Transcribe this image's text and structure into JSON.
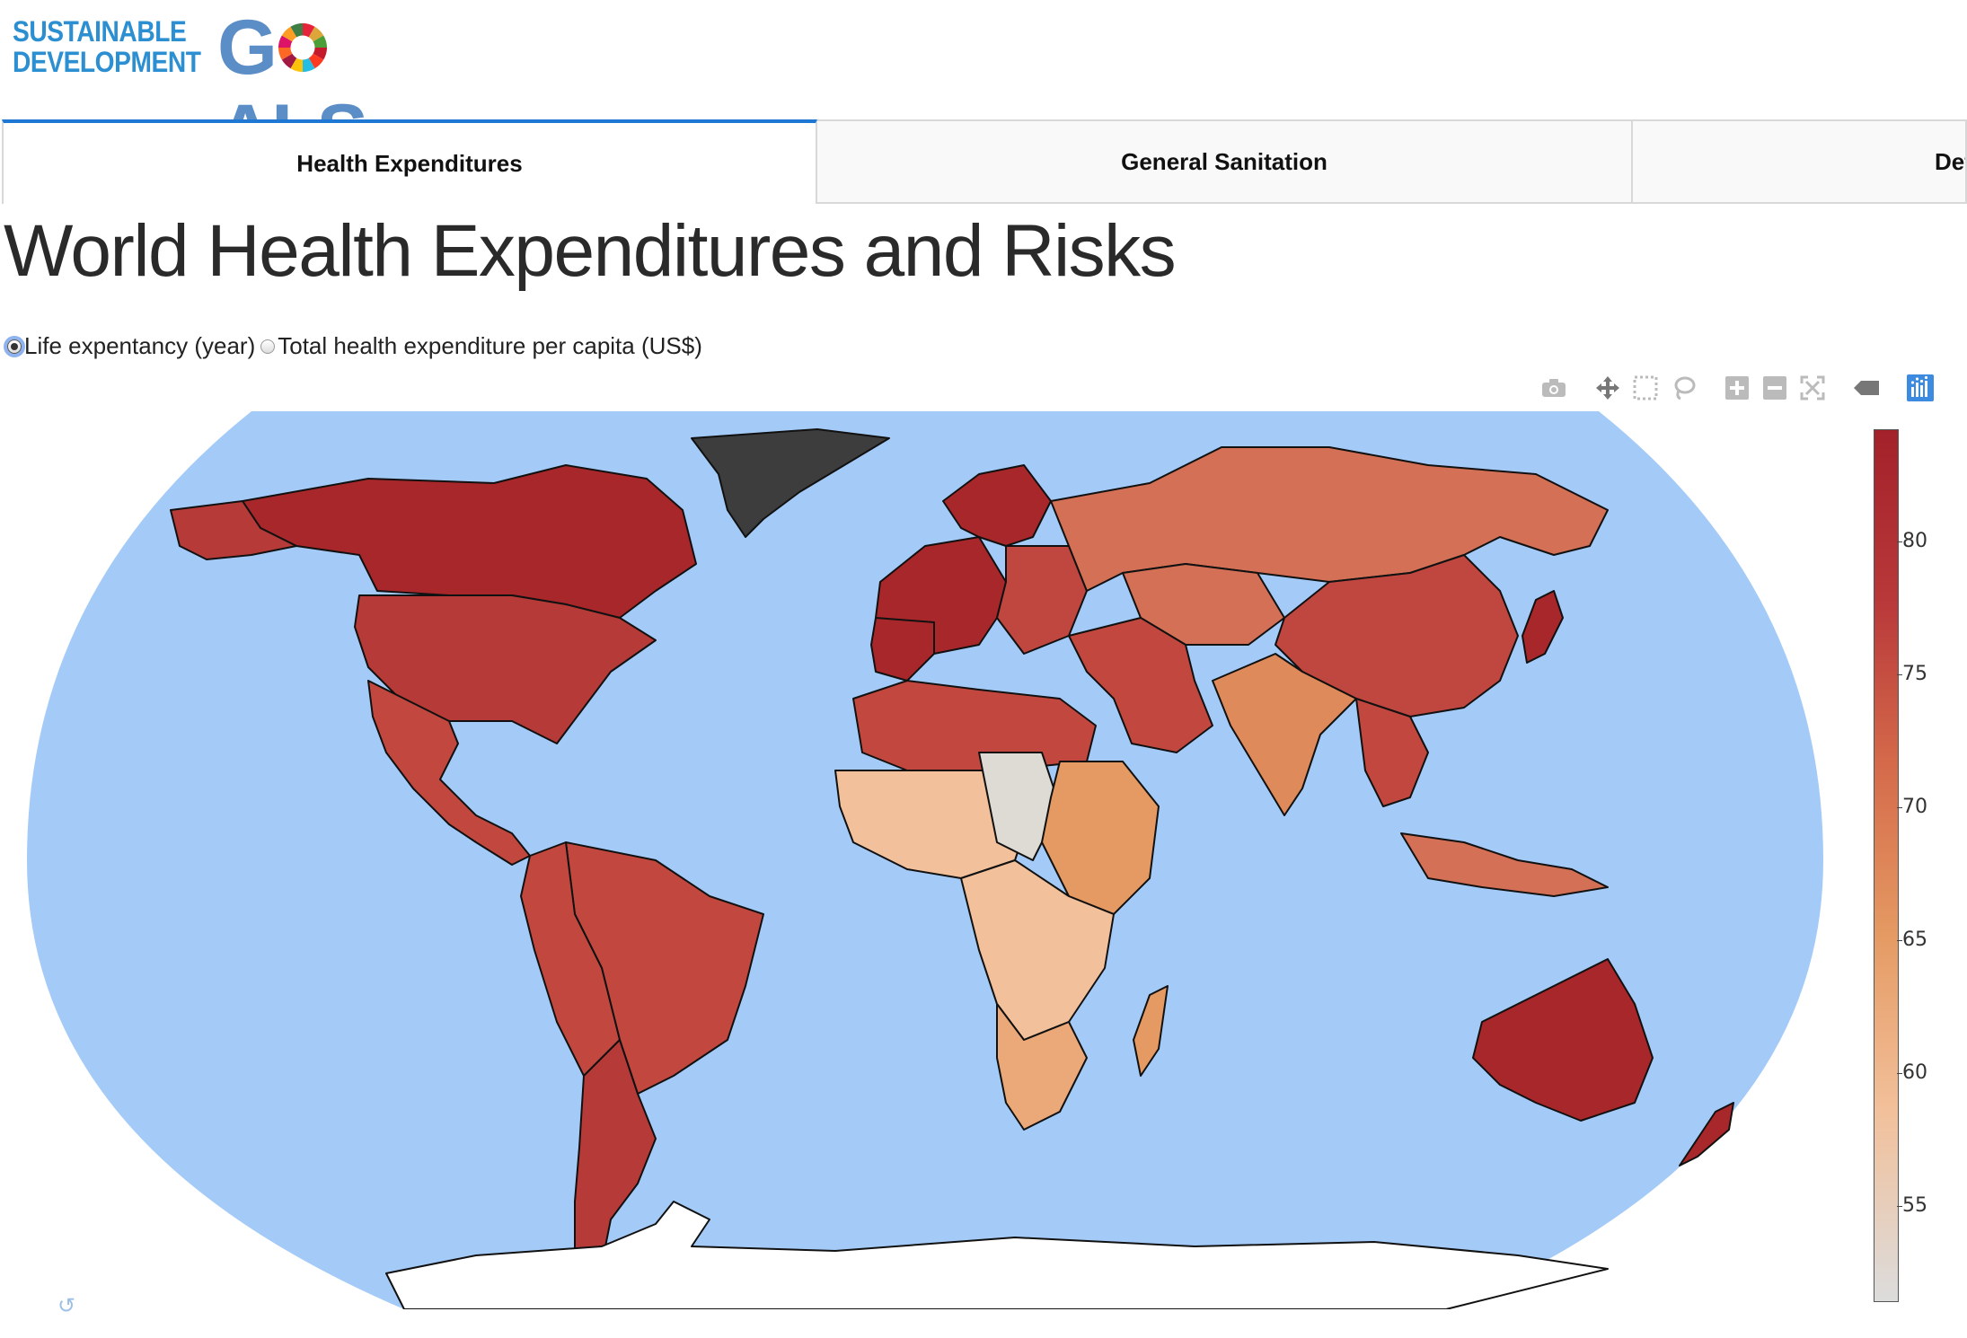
{
  "logo": {
    "line1": "SUSTAINABLE",
    "line2": "DEVELOPMENT",
    "big_left": "G",
    "big_right": "ALS"
  },
  "tabs": [
    {
      "label": "Health Expenditures",
      "active": true
    },
    {
      "label": "General Sanitation",
      "active": false
    },
    {
      "label": "Det",
      "active": false
    }
  ],
  "page_title": "World Health Expenditures and Risks",
  "radio_options": [
    {
      "label": "Life expentancy (year)",
      "checked": true
    },
    {
      "label": "Total health expenditure per capita (US$)",
      "checked": false
    }
  ],
  "modebar": [
    "camera-icon",
    "pan-icon",
    "box-select-icon",
    "lasso-icon",
    "zoom-in-icon",
    "zoom-out-icon",
    "autoscale-icon",
    "hover-closest-icon",
    "plotly-logo-icon"
  ],
  "colorbar": {
    "ticks": [
      "80",
      "75",
      "70",
      "65",
      "60",
      "55"
    ],
    "colors": [
      "#dcdcdc",
      "#f2c09a",
      "#e59a63",
      "#d4694a",
      "#b9393a",
      "#a3212a"
    ]
  },
  "map_colors": {
    "ocean": "#a4cbf8",
    "no_data": "#3d3d3d",
    "border": "#111111"
  }
}
